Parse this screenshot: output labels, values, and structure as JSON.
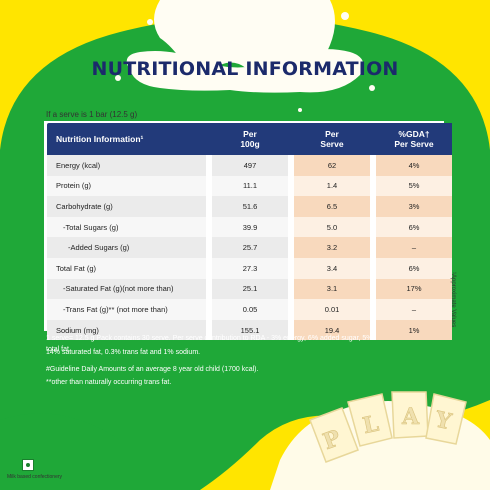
{
  "title": "NUTRITIONAL INFORMATION",
  "serve_note": "If a serve is 1 bar (12.5 g)",
  "table": {
    "headers": {
      "name": "Nutrition Information¹",
      "per100_line1": "Per",
      "per100_line2": "100g",
      "perserve_line1": "Per",
      "perserve_line2": "Serve",
      "gda_line1": "%GDA†",
      "gda_line2": "Per Serve"
    },
    "rows": [
      {
        "name": "Energy (kcal)",
        "per100": "497",
        "serve": "62",
        "gda": "4%"
      },
      {
        "name": "Protein (g)",
        "per100": "11.1",
        "serve": "1.4",
        "gda": "5%"
      },
      {
        "name": "Carbohydrate (g)",
        "per100": "51.6",
        "serve": "6.5",
        "gda": "3%"
      },
      {
        "name": "-Total Sugars (g)",
        "per100": "39.9",
        "serve": "5.0",
        "gda": "6%"
      },
      {
        "name": "-Added Sugars (g)",
        "per100": "25.7",
        "serve": "3.2",
        "gda": "–"
      },
      {
        "name": "Total Fat (g)",
        "per100": "27.3",
        "serve": "3.4",
        "gda": "6%"
      },
      {
        "name": "-Saturated Fat (g)(not more than)",
        "per100": "25.1",
        "serve": "3.1",
        "gda": "17%"
      },
      {
        "name": "-Trans Fat (g)** (not more than)",
        "per100": "0.05",
        "serve": "0.01",
        "gda": "–"
      },
      {
        "name": "Sodium (mg)",
        "per100": "155.1",
        "serve": "19.4",
        "gda": "1%"
      }
    ]
  },
  "footnotes": {
    "line1": "1 serve= 12.5 g Pack contains 30 serve. Per serve contribution to RDA - 3% energy, 6% added sugar, 5% total fat,",
    "line2": "14% saturated fat, 0.3% trans fat and 1% sodium.",
    "line3": "#Guideline Daily Amounts of an average 8 year old child (1700 kcal).",
    "line4": "**other than naturally occurring trans fat."
  },
  "side_note": "¹Approximate Values",
  "bottom_label": "Milk based confectionery",
  "colors": {
    "yellow": "#ffe500",
    "green": "#1fa838",
    "navy": "#223a7a",
    "peach": "#f8d9bd"
  }
}
